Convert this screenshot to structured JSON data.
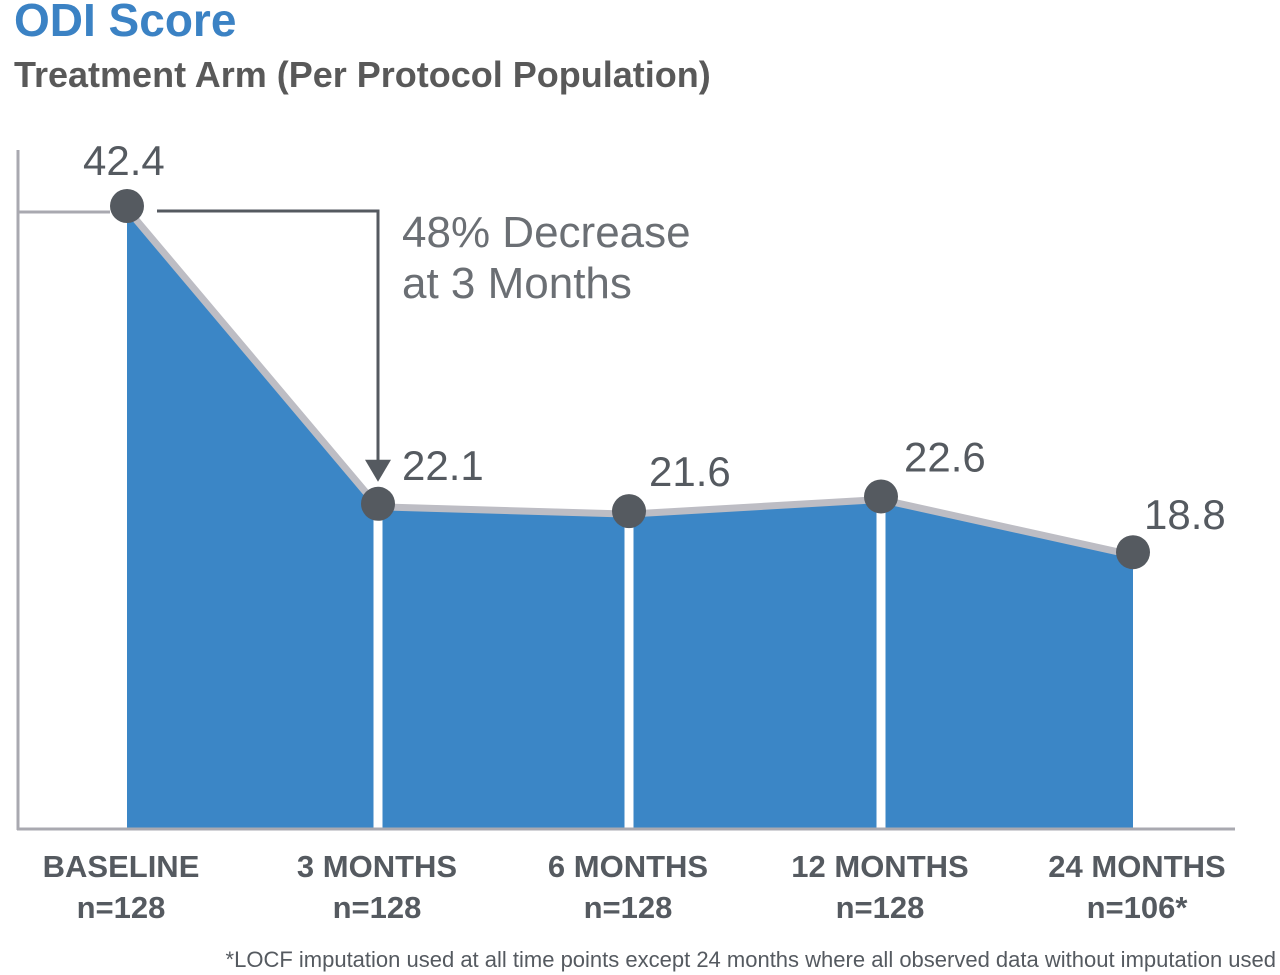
{
  "colors": {
    "title": "#3b82c4",
    "subtitle": "#595959",
    "area": "#3b86c6",
    "outline": "#bdbdc4",
    "axis": "#a9a9b0",
    "marker": "#555a60",
    "text": "#555a60",
    "annotation_line": "#555a60",
    "annotation_text": "#6b6f74",
    "divider": "#ffffff"
  },
  "chart_data": {
    "type": "area",
    "title": "ODI Score",
    "subtitle": "Treatment Arm (Per Protocol Population)",
    "categories": [
      "BASELINE",
      "3 MONTHS",
      "6 MONTHS",
      "12 MONTHS",
      "24 MONTHS"
    ],
    "sample_sizes": [
      "n=128",
      "n=128",
      "n=128",
      "n=128",
      "n=106*"
    ],
    "values": [
      42.4,
      22.1,
      21.6,
      22.6,
      18.8
    ],
    "value_labels": [
      "42.4",
      "22.1",
      "21.6",
      "22.6",
      "18.8"
    ],
    "ylim": [
      0,
      42.4
    ],
    "grid": false,
    "annotation": {
      "line1": "48% Decrease",
      "line2": "at 3 Months",
      "from_index": 0,
      "to_index": 1
    },
    "footnote": "*LOCF imputation used at all time points except 24 months where all observed data without imputation used"
  }
}
